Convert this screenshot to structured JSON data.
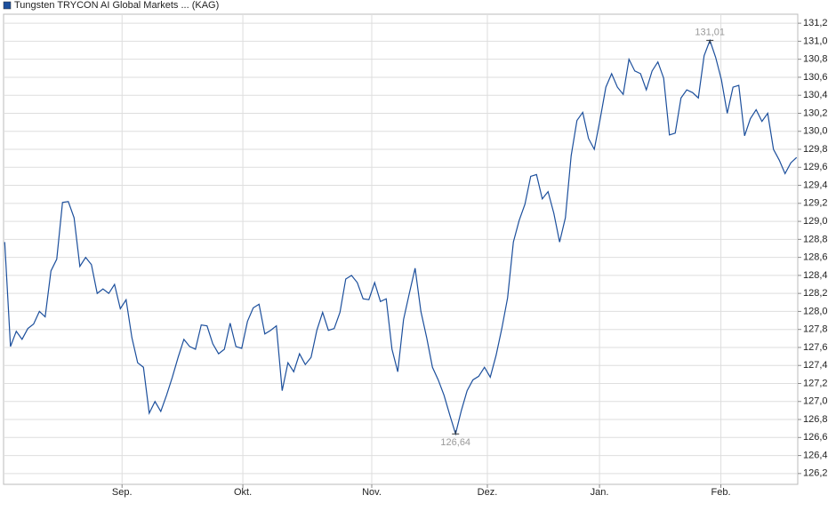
{
  "chart_data": {
    "type": "line",
    "series": [
      {
        "name": "Tungsten TRYCON AI Global Markets ... (KAG)",
        "color": "#1c4f9c",
        "values": [
          128.77,
          127.61,
          127.78,
          127.69,
          127.81,
          127.86,
          128.0,
          127.94,
          128.45,
          128.58,
          129.21,
          129.22,
          129.04,
          128.5,
          128.6,
          128.52,
          128.2,
          128.25,
          128.2,
          128.3,
          128.03,
          128.13,
          127.71,
          127.43,
          127.38,
          126.87,
          127.0,
          126.89,
          127.07,
          127.27,
          127.49,
          127.69,
          127.61,
          127.58,
          127.85,
          127.84,
          127.64,
          127.53,
          127.58,
          127.87,
          127.61,
          127.59,
          127.89,
          128.04,
          128.08,
          127.75,
          127.79,
          127.84,
          127.12,
          127.43,
          127.33,
          127.53,
          127.41,
          127.49,
          127.79,
          127.99,
          127.79,
          127.81,
          127.99,
          128.36,
          128.4,
          128.32,
          128.14,
          128.13,
          128.32,
          128.11,
          128.14,
          127.58,
          127.33,
          127.91,
          128.2,
          128.48,
          128.0,
          127.71,
          127.38,
          127.24,
          127.07,
          126.85,
          126.64,
          126.9,
          127.12,
          127.24,
          127.28,
          127.38,
          127.27,
          127.51,
          127.81,
          128.15,
          128.77,
          129.01,
          129.19,
          129.5,
          129.52,
          129.25,
          129.33,
          129.09,
          128.77,
          129.04,
          129.73,
          130.12,
          130.21,
          129.92,
          129.8,
          130.13,
          130.49,
          130.64,
          130.49,
          130.41,
          130.8,
          130.67,
          130.64,
          130.46,
          130.67,
          130.77,
          130.59,
          129.96,
          129.98,
          130.37,
          130.46,
          130.43,
          130.37,
          130.84,
          131.01,
          130.82,
          130.57,
          130.2,
          130.49,
          130.51,
          129.95,
          130.14,
          130.24,
          130.11,
          130.2,
          129.8,
          129.68,
          129.53,
          129.65,
          129.71
        ]
      }
    ],
    "xlim": [
      -0.2,
      137.2
    ],
    "xticks": [
      {
        "value": 20.3,
        "label": "Sep."
      },
      {
        "value": 41.2,
        "label": "Okt."
      },
      {
        "value": 63.5,
        "label": "Nov."
      },
      {
        "value": 83.5,
        "label": "Dez."
      },
      {
        "value": 102.9,
        "label": "Jan."
      },
      {
        "value": 123.9,
        "label": "Feb."
      }
    ],
    "ylim": [
      126.08,
      131.3
    ],
    "yticks": [
      {
        "value": 126.2,
        "label": "126,2"
      },
      {
        "value": 126.4,
        "label": "126,4"
      },
      {
        "value": 126.6,
        "label": "126,6"
      },
      {
        "value": 126.8,
        "label": "126,8"
      },
      {
        "value": 127.0,
        "label": "127,0"
      },
      {
        "value": 127.2,
        "label": "127,2"
      },
      {
        "value": 127.4,
        "label": "127,4"
      },
      {
        "value": 127.6,
        "label": "127,6"
      },
      {
        "value": 127.8,
        "label": "127,8"
      },
      {
        "value": 128.0,
        "label": "128,0"
      },
      {
        "value": 128.2,
        "label": "128,2"
      },
      {
        "value": 128.4,
        "label": "128,4"
      },
      {
        "value": 128.6,
        "label": "128,6"
      },
      {
        "value": 128.8,
        "label": "128,8"
      },
      {
        "value": 129.0,
        "label": "129,0"
      },
      {
        "value": 129.2,
        "label": "129,2"
      },
      {
        "value": 129.4,
        "label": "129,4"
      },
      {
        "value": 129.6,
        "label": "129,6"
      },
      {
        "value": 129.8,
        "label": "129,8"
      },
      {
        "value": 130.0,
        "label": "130,0"
      },
      {
        "value": 130.2,
        "label": "130,2"
      },
      {
        "value": 130.4,
        "label": "130,4"
      },
      {
        "value": 130.6,
        "label": "130,6"
      },
      {
        "value": 130.8,
        "label": "130,8"
      },
      {
        "value": 131.0,
        "label": "131,0"
      },
      {
        "value": 131.2,
        "label": "131,2"
      }
    ],
    "grid": true,
    "annotations": [
      {
        "index": 122,
        "value": 131.01,
        "label": "131,01",
        "position": "above"
      },
      {
        "index": 78,
        "value": 126.64,
        "label": "126,64",
        "position": "below"
      }
    ]
  }
}
